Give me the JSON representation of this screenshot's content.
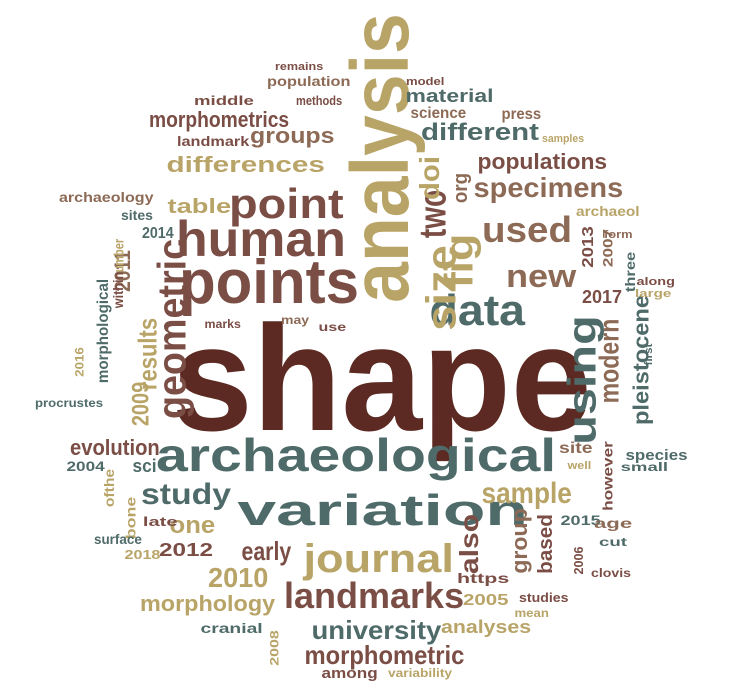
{
  "palette": {
    "maroon": "#5c2a22",
    "brown": "#7a4d45",
    "teal": "#4f6b69",
    "gold": "#b9a468",
    "tan": "#8c6a55"
  },
  "words": [
    {
      "text": "shape",
      "color": "maroon"
    },
    {
      "text": "analysis",
      "color": "gold"
    },
    {
      "text": "archaeological",
      "color": "teal"
    },
    {
      "text": "variation",
      "color": "teal"
    },
    {
      "text": "points",
      "color": "brown"
    },
    {
      "text": "human",
      "color": "brown"
    },
    {
      "text": "point",
      "color": "brown"
    },
    {
      "text": "journal",
      "color": "gold"
    },
    {
      "text": "data",
      "color": "teal"
    },
    {
      "text": "landmarks",
      "color": "brown"
    },
    {
      "text": "size",
      "color": "gold"
    },
    {
      "text": "using",
      "color": "teal"
    },
    {
      "text": "fig",
      "color": "gold"
    },
    {
      "text": "two",
      "color": "brown"
    },
    {
      "text": "geometric",
      "color": "brown"
    },
    {
      "text": "used",
      "color": "tan"
    },
    {
      "text": "specimens",
      "color": "tan"
    },
    {
      "text": "study",
      "color": "teal"
    },
    {
      "text": "sample",
      "color": "gold"
    },
    {
      "text": "university",
      "color": "teal"
    },
    {
      "text": "morphometric",
      "color": "brown"
    },
    {
      "text": "new",
      "color": "tan"
    },
    {
      "text": "populations",
      "color": "brown"
    },
    {
      "text": "different",
      "color": "teal"
    },
    {
      "text": "differences",
      "color": "gold"
    },
    {
      "text": "groups",
      "color": "tan"
    },
    {
      "text": "morphometrics",
      "color": "brown"
    },
    {
      "text": "material",
      "color": "teal"
    },
    {
      "text": "science",
      "color": "tan"
    },
    {
      "text": "results",
      "color": "gold"
    },
    {
      "text": "modern",
      "color": "tan"
    },
    {
      "text": "pleistocene",
      "color": "teal"
    },
    {
      "text": "doi",
      "color": "gold"
    },
    {
      "text": "org",
      "color": "tan"
    },
    {
      "text": "evolution",
      "color": "brown"
    },
    {
      "text": "early",
      "color": "brown"
    },
    {
      "text": "2010",
      "color": "gold"
    },
    {
      "text": "morphology",
      "color": "gold"
    },
    {
      "text": "also",
      "color": "brown"
    },
    {
      "text": "group",
      "color": "tan"
    },
    {
      "text": "based",
      "color": "brown"
    },
    {
      "text": "one",
      "color": "gold"
    },
    {
      "text": "2012",
      "color": "brown"
    },
    {
      "text": "2009",
      "color": "gold"
    },
    {
      "text": "2011",
      "color": "tan"
    },
    {
      "text": "2017",
      "color": "brown"
    },
    {
      "text": "table",
      "color": "gold"
    },
    {
      "text": "2014",
      "color": "teal"
    },
    {
      "text": "sites",
      "color": "teal"
    },
    {
      "text": "archaeology",
      "color": "tan"
    },
    {
      "text": "landmark",
      "color": "brown"
    },
    {
      "text": "middle",
      "color": "brown"
    },
    {
      "text": "methods",
      "color": "brown"
    },
    {
      "text": "population",
      "color": "tan"
    },
    {
      "text": "remains",
      "color": "brown"
    },
    {
      "text": "model",
      "color": "brown"
    },
    {
      "text": "press",
      "color": "tan"
    },
    {
      "text": "samples",
      "color": "gold"
    },
    {
      "text": "archaeol",
      "color": "gold"
    },
    {
      "text": "2013",
      "color": "brown"
    },
    {
      "text": "2007",
      "color": "tan"
    },
    {
      "text": "form",
      "color": "tan"
    },
    {
      "text": "three",
      "color": "teal"
    },
    {
      "text": "along",
      "color": "brown"
    },
    {
      "text": "large",
      "color": "gold"
    },
    {
      "text": "first",
      "color": "teal"
    },
    {
      "text": "morphological",
      "color": "teal"
    },
    {
      "text": "number",
      "color": "gold"
    },
    {
      "text": "within",
      "color": "brown"
    },
    {
      "text": "marks",
      "color": "brown"
    },
    {
      "text": "may",
      "color": "tan"
    },
    {
      "text": "use",
      "color": "brown"
    },
    {
      "text": "2016",
      "color": "gold"
    },
    {
      "text": "procrustes",
      "color": "teal"
    },
    {
      "text": "2004",
      "color": "teal"
    },
    {
      "text": "ofthe",
      "color": "gold"
    },
    {
      "text": "sci",
      "color": "teal"
    },
    {
      "text": "bone",
      "color": "gold"
    },
    {
      "text": "late",
      "color": "brown"
    },
    {
      "text": "surface",
      "color": "teal"
    },
    {
      "text": "2018",
      "color": "gold"
    },
    {
      "text": "site",
      "color": "tan"
    },
    {
      "text": "however",
      "color": "brown"
    },
    {
      "text": "species",
      "color": "teal"
    },
    {
      "text": "well",
      "color": "gold"
    },
    {
      "text": "small",
      "color": "teal"
    },
    {
      "text": "2015",
      "color": "teal"
    },
    {
      "text": "age",
      "color": "tan"
    },
    {
      "text": "2006",
      "color": "brown"
    },
    {
      "text": "cut",
      "color": "teal"
    },
    {
      "text": "clovis",
      "color": "brown"
    },
    {
      "text": "https",
      "color": "brown"
    },
    {
      "text": "2005",
      "color": "gold"
    },
    {
      "text": "studies",
      "color": "brown"
    },
    {
      "text": "mean",
      "color": "gold"
    },
    {
      "text": "analyses",
      "color": "gold"
    },
    {
      "text": "cranial",
      "color": "teal"
    },
    {
      "text": "2008",
      "color": "gold"
    },
    {
      "text": "among",
      "color": "brown"
    },
    {
      "text": "variability",
      "color": "gold"
    }
  ]
}
